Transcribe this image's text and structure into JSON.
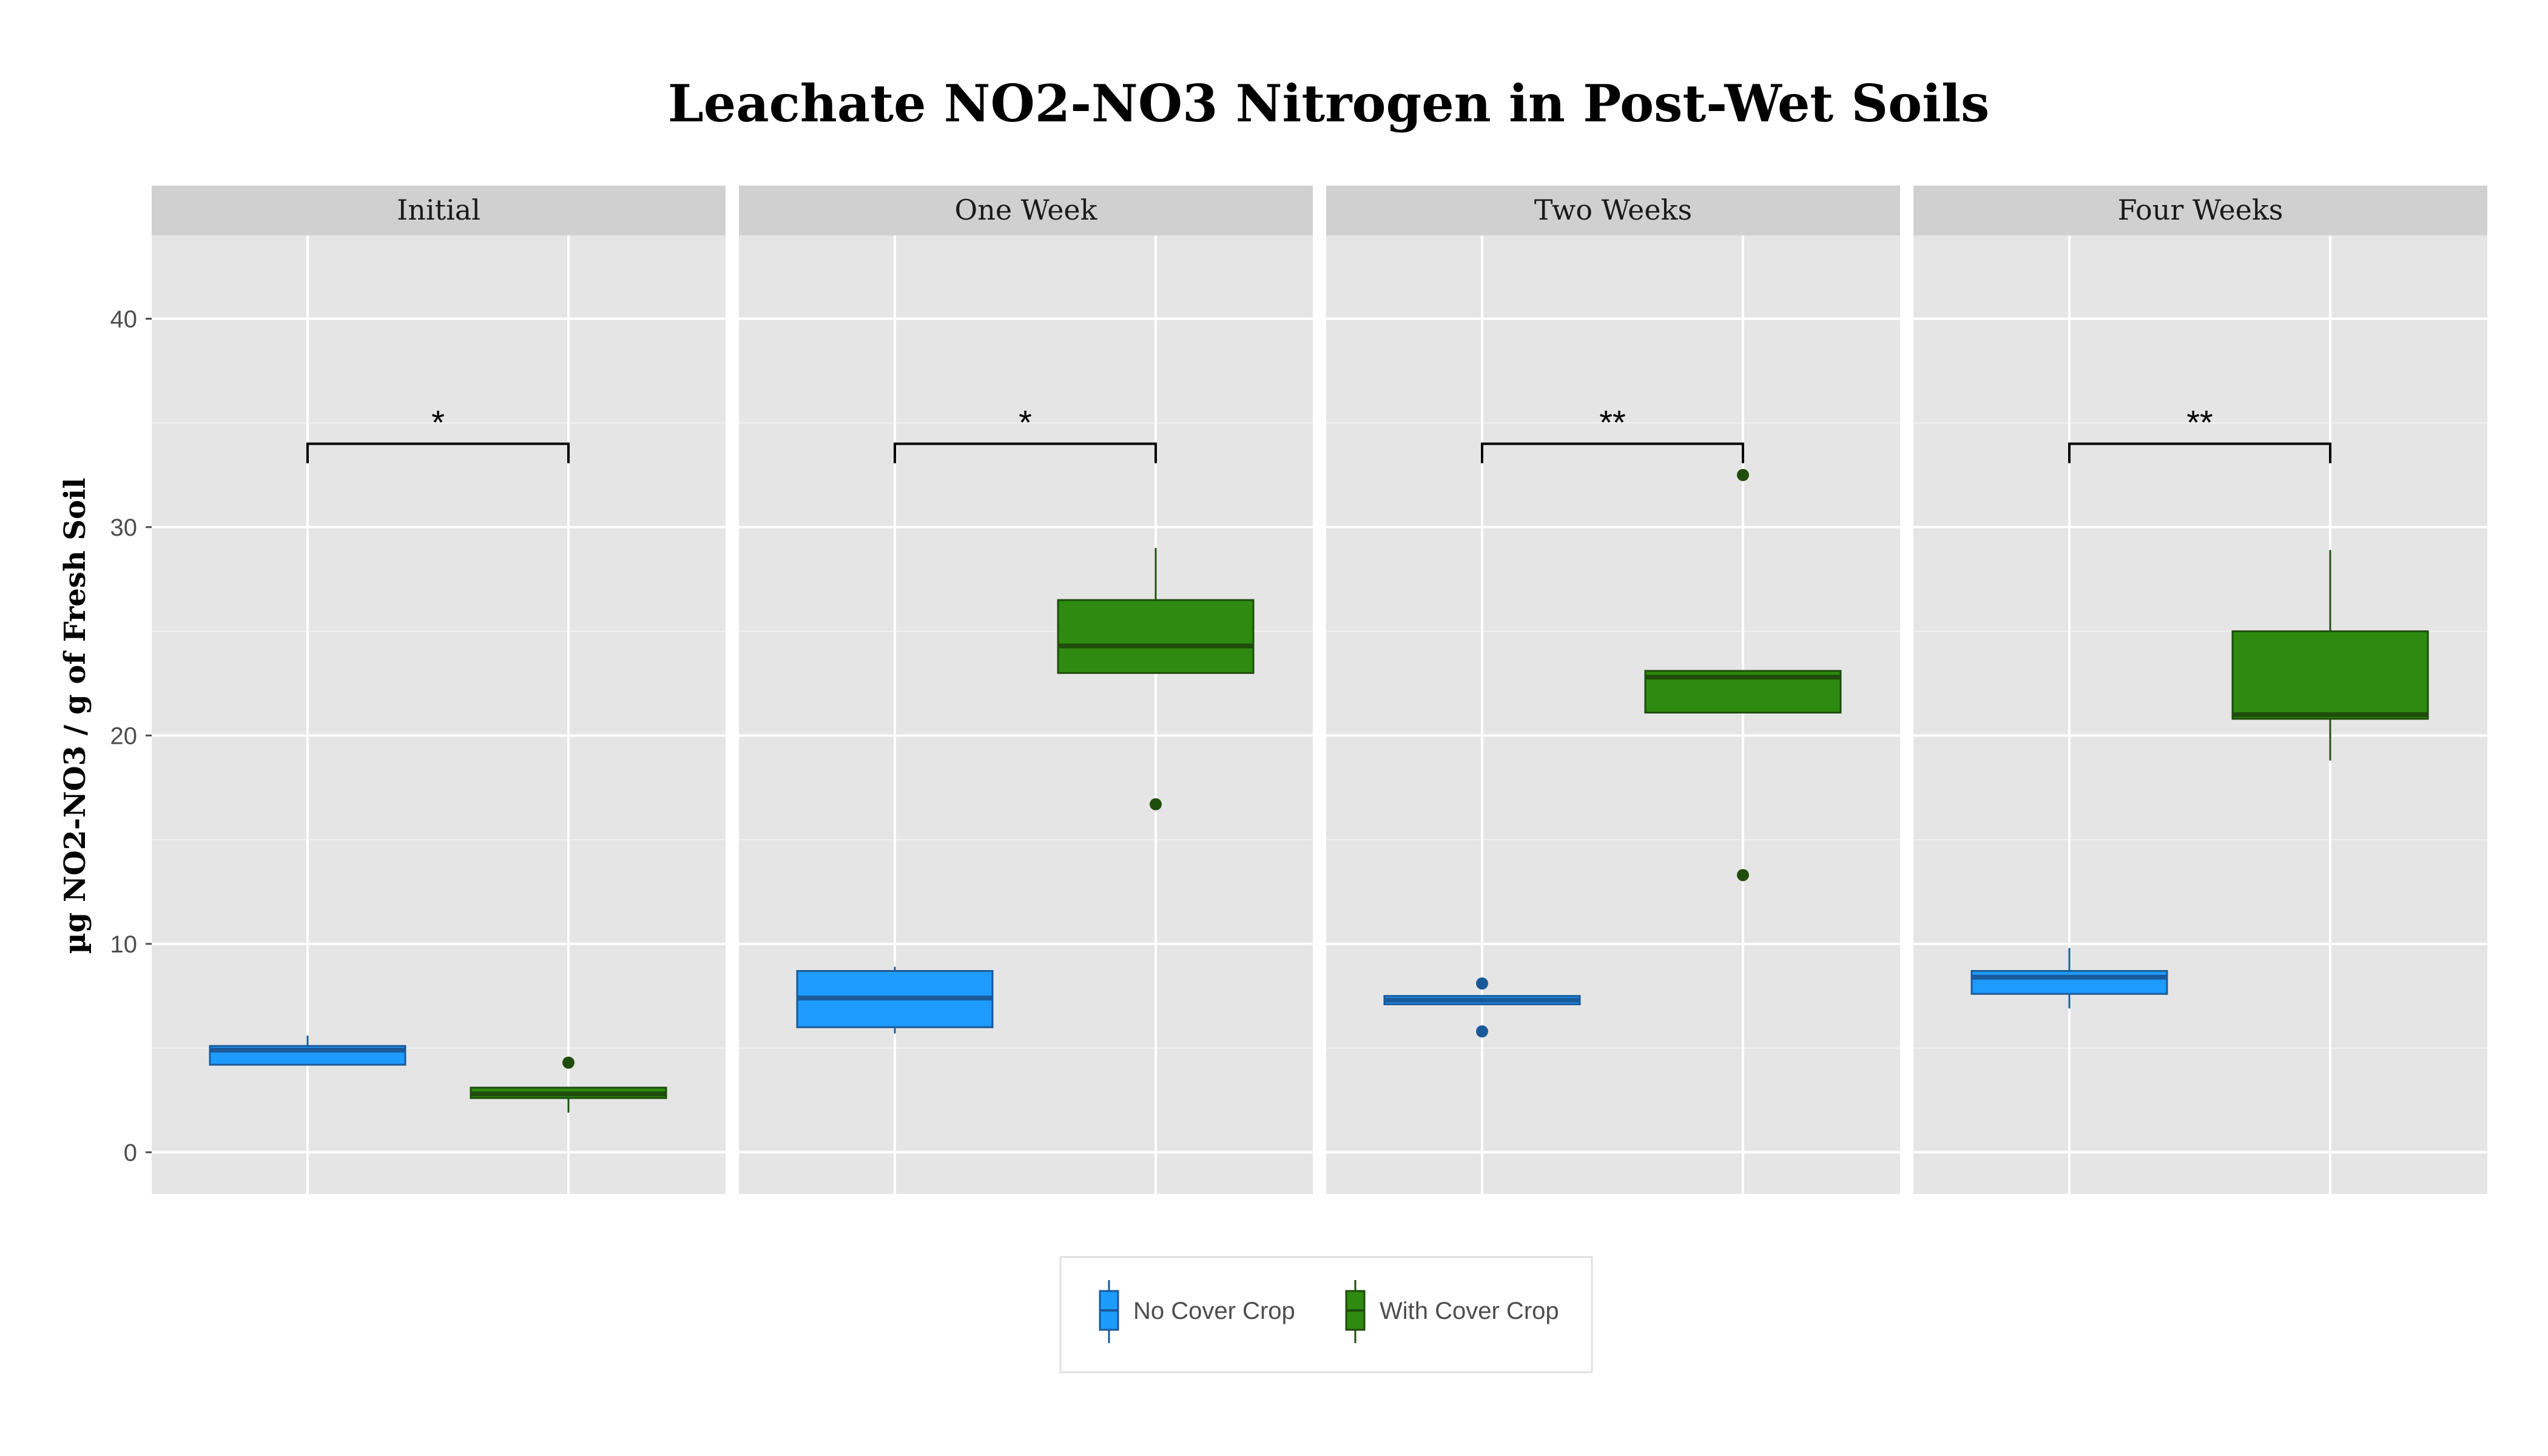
{
  "chart_data": {
    "type": "box",
    "title": "Leachate NO2-NO3 Nitrogen in Post-Wet Soils",
    "xlabel": "",
    "ylabel": "µg NO2-NO3 / g of Fresh Soil",
    "ylim": [
      -2,
      44
    ],
    "yticks": [
      0,
      10,
      20,
      30,
      40
    ],
    "grid": true,
    "legend_position": "bottom",
    "series": [
      {
        "name": "No Cover Crop",
        "color": "#1e9bff",
        "border": "#1a5a9a"
      },
      {
        "name": "With Cover Crop",
        "color": "#2e8b10",
        "border": "#1e4d0c"
      }
    ],
    "panels": [
      {
        "label": "Initial",
        "significance": "*",
        "bracket_y": 34,
        "boxes": [
          {
            "series": "No Cover Crop",
            "whisker_low": 4.2,
            "q1": 4.2,
            "median": 4.9,
            "q3": 5.1,
            "whisker_high": 5.6,
            "outliers": []
          },
          {
            "series": "With Cover Crop",
            "whisker_low": 1.9,
            "q1": 2.6,
            "median": 2.8,
            "q3": 3.1,
            "whisker_high": 3.1,
            "outliers": [
              4.3
            ]
          }
        ]
      },
      {
        "label": "One Week",
        "significance": "*",
        "bracket_y": 34,
        "boxes": [
          {
            "series": "No Cover Crop",
            "whisker_low": 5.7,
            "q1": 6.0,
            "median": 7.4,
            "q3": 8.7,
            "whisker_high": 8.9,
            "outliers": []
          },
          {
            "series": "With Cover Crop",
            "whisker_low": 23.0,
            "q1": 23.0,
            "median": 24.3,
            "q3": 26.5,
            "whisker_high": 29.0,
            "outliers": [
              16.7
            ]
          }
        ]
      },
      {
        "label": "Two Weeks",
        "significance": "**",
        "bracket_y": 34,
        "boxes": [
          {
            "series": "No Cover Crop",
            "whisker_low": 7.1,
            "q1": 7.1,
            "median": 7.3,
            "q3": 7.5,
            "whisker_high": 7.5,
            "outliers": [
              8.1,
              5.8
            ]
          },
          {
            "series": "With Cover Crop",
            "whisker_low": 21.1,
            "q1": 21.1,
            "median": 22.8,
            "q3": 23.1,
            "whisker_high": 23.1,
            "outliers": [
              32.5,
              13.3
            ]
          }
        ]
      },
      {
        "label": "Four Weeks",
        "significance": "**",
        "bracket_y": 34,
        "boxes": [
          {
            "series": "No Cover Crop",
            "whisker_low": 6.9,
            "q1": 7.6,
            "median": 8.4,
            "q3": 8.7,
            "whisker_high": 9.8,
            "outliers": []
          },
          {
            "series": "With Cover Crop",
            "whisker_low": 18.8,
            "q1": 20.8,
            "median": 21.0,
            "q3": 25.0,
            "whisker_high": 28.9,
            "outliers": []
          }
        ]
      }
    ]
  }
}
